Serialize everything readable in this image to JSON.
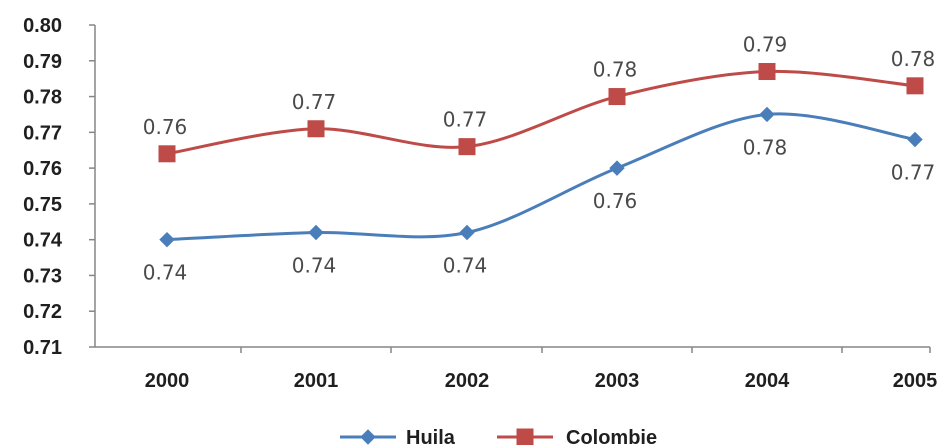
{
  "chart_data": {
    "type": "line",
    "title": "",
    "xlabel": "",
    "ylabel": "",
    "categories": [
      "2000",
      "2001",
      "2002",
      "2003",
      "2004",
      "2005"
    ],
    "ylim": [
      0.71,
      0.8
    ],
    "yticks": [
      "0.80",
      "0.79",
      "0.78",
      "0.77",
      "0.76",
      "0.75",
      "0.74",
      "0.73",
      "0.72",
      "0.71"
    ],
    "grid": false,
    "legend_position": "bottom",
    "series": [
      {
        "name": "Huila",
        "marker": "diamond",
        "color": "#4a7ebb",
        "values": [
          0.74,
          0.742,
          0.742,
          0.76,
          0.775,
          0.768
        ],
        "labels": [
          "0.74",
          "0.74",
          "0.74",
          "0.76",
          "0.78",
          "0.77"
        ]
      },
      {
        "name": "Colombie",
        "marker": "square",
        "color": "#be4b48",
        "values": [
          0.764,
          0.771,
          0.766,
          0.78,
          0.787,
          0.783
        ],
        "labels": [
          "0.76",
          "0.77",
          "0.77",
          "0.78",
          "0.79",
          "0.78"
        ]
      }
    ]
  }
}
